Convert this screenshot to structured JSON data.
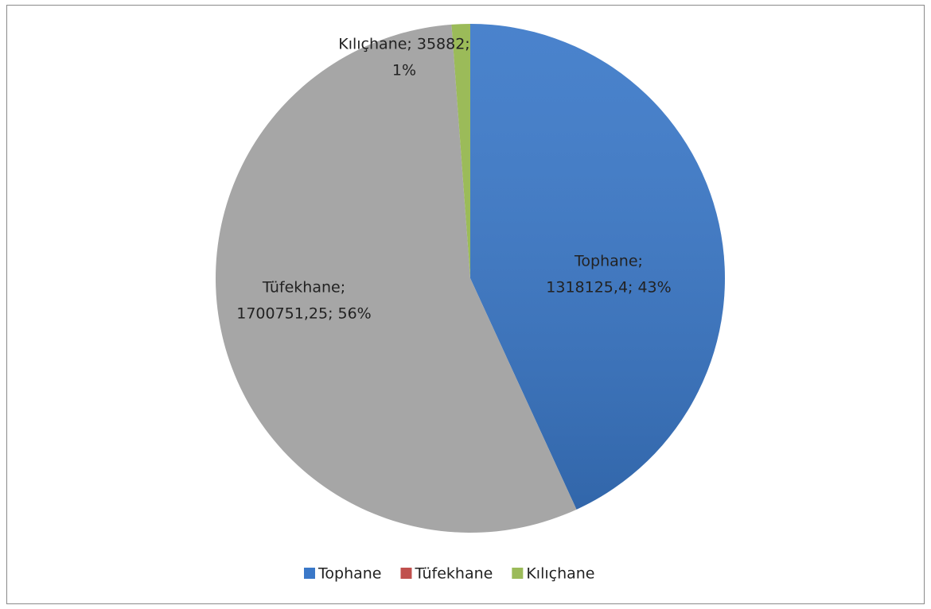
{
  "chart_data": {
    "type": "pie",
    "categories": [
      "Tophane",
      "Tüfekhane",
      "Kılıçhane"
    ],
    "values": [
      1318125.4,
      1700751.25,
      35882
    ],
    "value_labels": [
      [
        "Tophane;",
        "1318125,4; 43%"
      ],
      [
        "Tüfekhane;",
        "1700751,25; 56%"
      ],
      [
        "Kılıçhane; 35882;",
        "1%"
      ]
    ],
    "colors": [
      "#3a78c8",
      "#a6a6a6",
      "#9bbb59"
    ],
    "legend_colors": [
      "#3a78c8",
      "#c0504d",
      "#9bbb59"
    ],
    "legend": "bottom"
  }
}
